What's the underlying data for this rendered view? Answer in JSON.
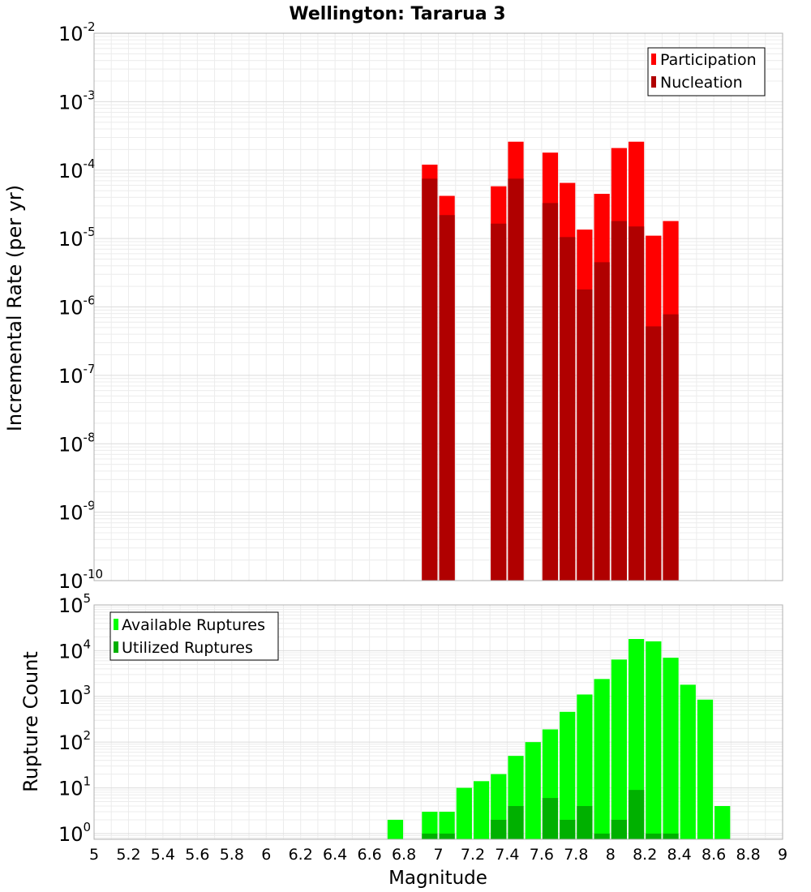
{
  "chart_data": [
    {
      "type": "bar",
      "title": "Wellington: Tararua 3",
      "xlabel": "",
      "ylabel": "Incremental Rate (per yr)",
      "yscale": "log",
      "xlim": [
        5,
        9
      ],
      "ylim": [
        1e-10,
        0.01
      ],
      "ytick_exponents": [
        -10,
        -9,
        -8,
        -7,
        -6,
        -5,
        -4,
        -3,
        -2
      ],
      "grid": true,
      "legend_position": "top-right",
      "bin_width": 0.1,
      "series": [
        {
          "name": "Participation",
          "color": "#ff0000",
          "x": [
            6.95,
            7.05,
            7.35,
            7.45,
            7.65,
            7.75,
            7.85,
            7.95,
            8.05,
            8.15,
            8.25,
            8.35
          ],
          "values": [
            0.00012,
            4.2e-05,
            5.8e-05,
            0.00026,
            0.00018,
            6.5e-05,
            1.35e-05,
            4.5e-05,
            0.00021,
            0.00026,
            1.1e-05,
            1.8e-05
          ]
        },
        {
          "name": "Nucleation",
          "color": "#b00000",
          "x": [
            6.95,
            7.05,
            7.35,
            7.45,
            7.65,
            7.75,
            7.85,
            7.95,
            8.05,
            8.15,
            8.25,
            8.35
          ],
          "values": [
            7.5e-05,
            2.2e-05,
            1.65e-05,
            7.5e-05,
            3.3e-05,
            1.05e-05,
            1.8e-06,
            4.5e-06,
            1.8e-05,
            1.5e-05,
            5.2e-07,
            7.8e-07
          ]
        }
      ]
    },
    {
      "type": "bar",
      "title": "",
      "xlabel": "Magnitude",
      "ylabel": "Rupture Count",
      "yscale": "log",
      "xlim": [
        5,
        9
      ],
      "ylim": [
        0.75,
        100000.0
      ],
      "xticks": [
        "5",
        "5.2",
        "5.4",
        "5.6",
        "5.8",
        "6",
        "6.2",
        "6.4",
        "6.6",
        "6.8",
        "7",
        "7.2",
        "7.4",
        "7.6",
        "7.8",
        "8",
        "8.2",
        "8.4",
        "8.6",
        "8.8",
        "9"
      ],
      "ytick_exponents": [
        0,
        1,
        2,
        3,
        4,
        5
      ],
      "grid": true,
      "legend_position": "top-left",
      "bin_width": 0.1,
      "series": [
        {
          "name": "Available Ruptures",
          "color": "#00ff00",
          "x": [
            6.75,
            6.95,
            7.05,
            7.15,
            7.25,
            7.35,
            7.45,
            7.55,
            7.65,
            7.75,
            7.85,
            7.95,
            8.05,
            8.15,
            8.25,
            8.35,
            8.45,
            8.55,
            8.65
          ],
          "values": [
            2,
            3,
            3,
            10,
            14,
            20,
            50,
            100,
            190,
            460,
            1100,
            2400,
            6400,
            18000,
            16000,
            7000,
            1800,
            850,
            4
          ]
        },
        {
          "name": "Utilized Ruptures",
          "color": "#00b000",
          "x": [
            6.95,
            7.05,
            7.35,
            7.45,
            7.65,
            7.75,
            7.85,
            7.95,
            8.05,
            8.15,
            8.25,
            8.35
          ],
          "values": [
            1,
            1,
            2,
            4,
            6,
            2,
            4,
            1,
            2,
            9,
            1,
            1
          ]
        }
      ]
    }
  ]
}
